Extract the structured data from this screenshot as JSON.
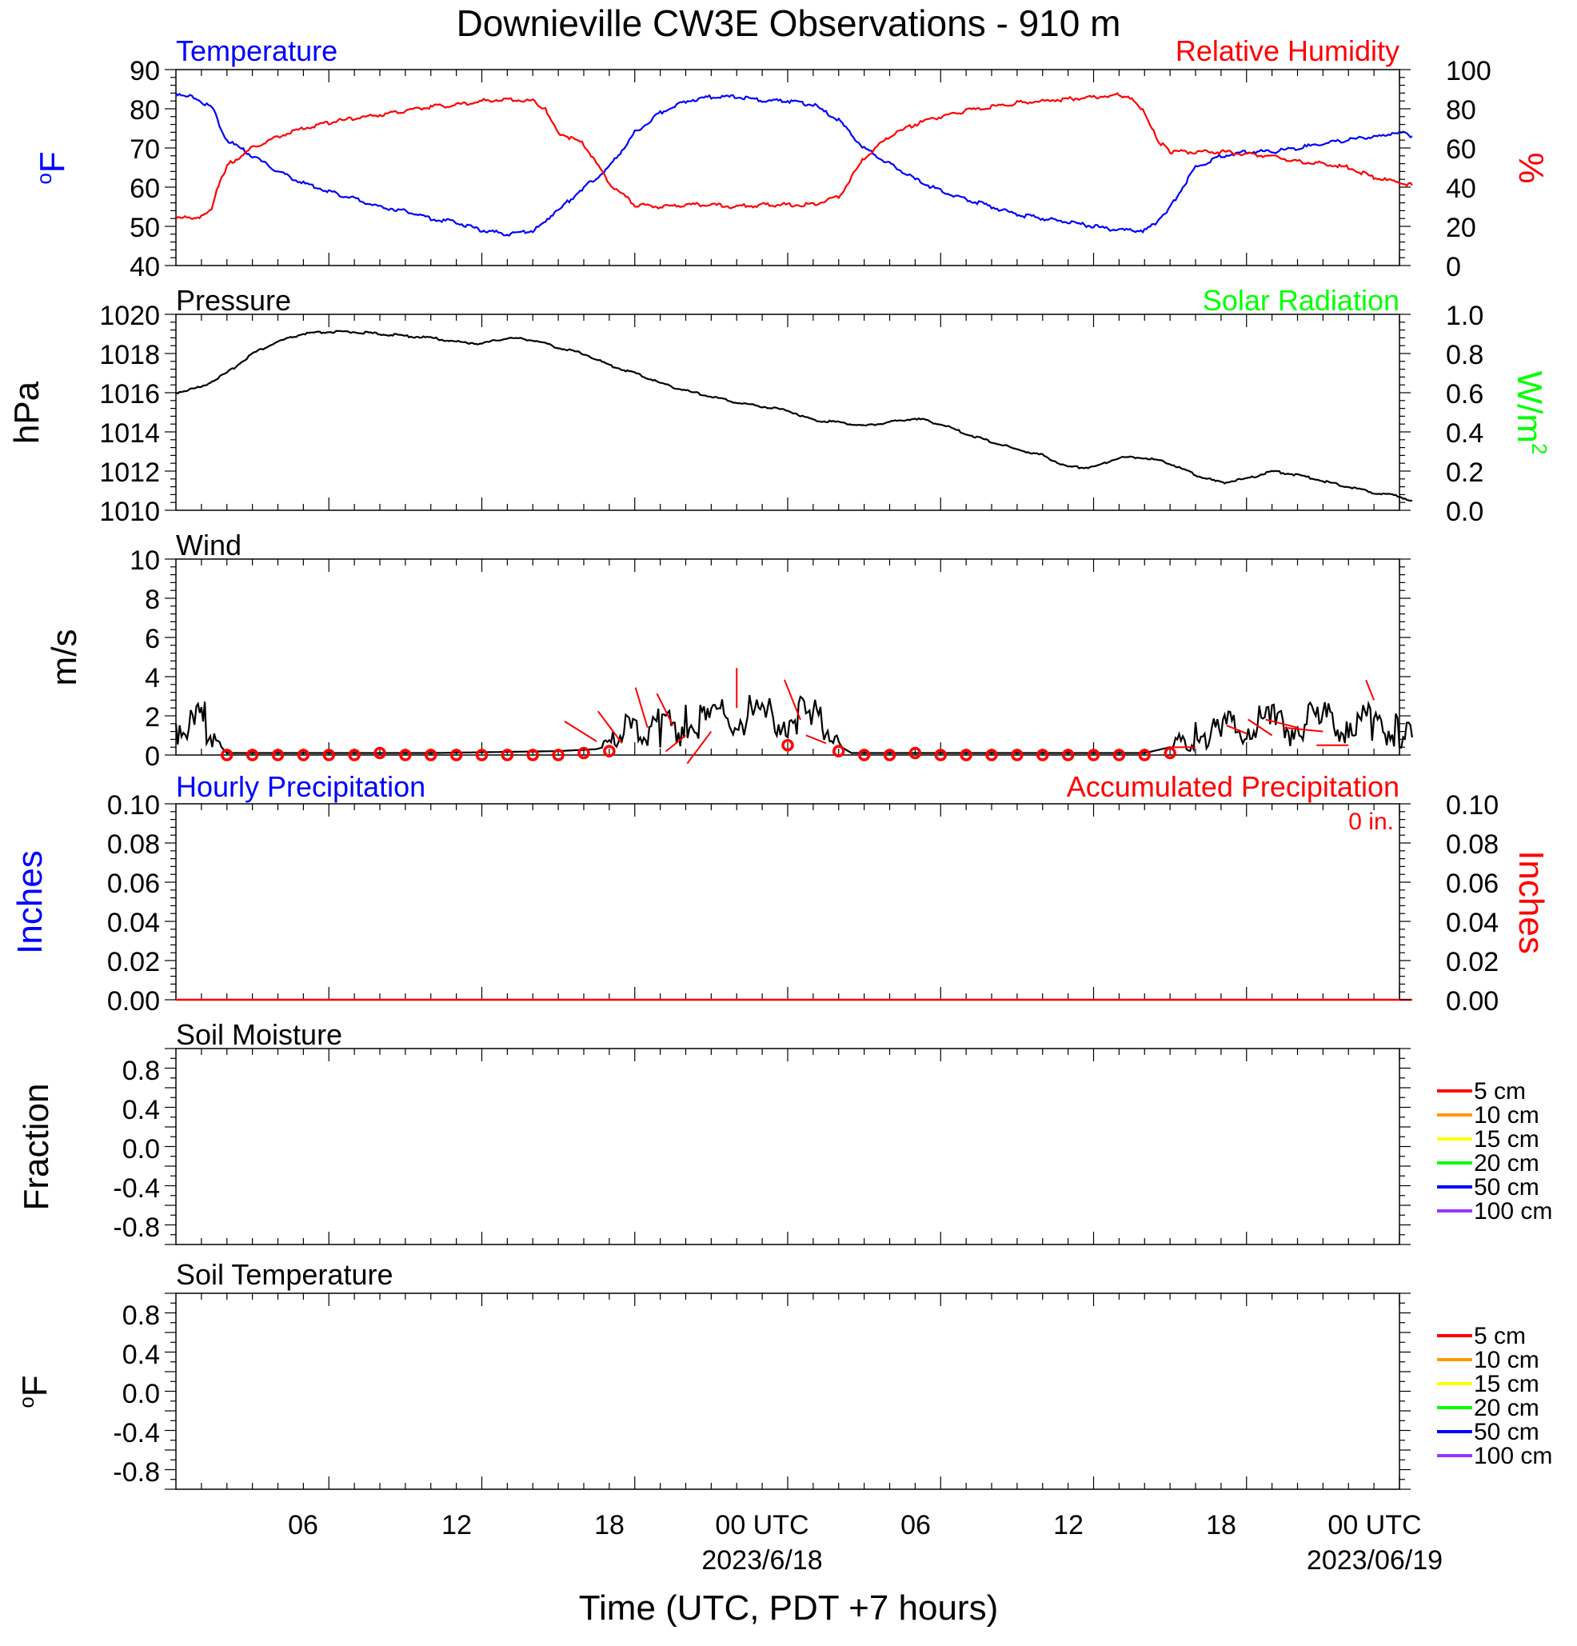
{
  "title": "Downieville CW3E Observations - 910 m",
  "xlabel": "Time (UTC, PDT +7 hours)",
  "x_ticks": [
    {
      "h": 6,
      "label": "06"
    },
    {
      "h": 12,
      "label": "12"
    },
    {
      "h": 18,
      "label": "18"
    },
    {
      "h": 24,
      "label": "00 UTC",
      "date": "2023/6/18"
    },
    {
      "h": 30,
      "label": "06"
    },
    {
      "h": 36,
      "label": "12"
    },
    {
      "h": 42,
      "label": "18"
    },
    {
      "h": 48,
      "label": "00 UTC",
      "date": "2023/06/19"
    }
  ],
  "colors": {
    "blue": "#0000ff",
    "red": "#ff0000",
    "green": "#00ff00",
    "black": "#000000"
  },
  "legend_depths": [
    {
      "label": "5 cm",
      "color": "#ff0000"
    },
    {
      "label": "10 cm",
      "color": "#ff9900"
    },
    {
      "label": "15 cm",
      "color": "#ffff00"
    },
    {
      "label": "20 cm",
      "color": "#00ff00"
    },
    {
      "label": "50 cm",
      "color": "#0000ff"
    },
    {
      "label": "100 cm",
      "color": "#9933ff"
    }
  ],
  "chart_data": [
    {
      "type": "line",
      "left_title": "Temperature",
      "right_title": "Relative Humidity",
      "left_unit": "oF",
      "right_unit": "%",
      "ylim_left": [
        40,
        90
      ],
      "ylim_right": [
        0,
        100
      ],
      "left_ticks": [
        "40",
        "50",
        "60",
        "70",
        "80",
        "90"
      ],
      "right_ticks": [
        "0",
        "20",
        "40",
        "60",
        "80",
        "100"
      ],
      "series": [
        {
          "color": "#0000ff",
          "axis": "left",
          "points": [
            [
              0,
              84
            ],
            [
              0.7,
              83
            ],
            [
              1.5,
              80
            ],
            [
              1.7,
              76
            ],
            [
              2,
              72
            ],
            [
              3,
              68
            ],
            [
              4,
              64
            ],
            [
              5,
              61
            ],
            [
              6,
              59
            ],
            [
              7,
              57
            ],
            [
              8,
              55
            ],
            [
              9,
              54
            ],
            [
              10,
              52
            ],
            [
              11,
              51
            ],
            [
              12,
              49
            ],
            [
              13,
              48
            ],
            [
              14,
              49
            ],
            [
              14.5,
              51
            ],
            [
              15,
              54
            ],
            [
              16,
              60
            ],
            [
              17,
              65
            ],
            [
              18,
              74
            ],
            [
              19,
              79
            ],
            [
              20,
              82
            ],
            [
              21,
              83
            ],
            [
              22,
              83
            ],
            [
              23,
              82
            ],
            [
              24,
              82
            ],
            [
              25,
              81
            ],
            [
              26,
              77
            ],
            [
              27,
              70
            ],
            [
              28,
              66
            ],
            [
              29,
              62
            ],
            [
              30,
              59
            ],
            [
              31,
              57
            ],
            [
              32,
              55
            ],
            [
              33,
              53
            ],
            [
              34,
              52
            ],
            [
              35,
              51
            ],
            [
              36,
              50
            ],
            [
              37,
              49
            ],
            [
              38,
              49
            ],
            [
              38.5,
              51
            ],
            [
              39,
              55
            ],
            [
              40,
              65
            ],
            [
              41,
              68
            ],
            [
              42,
              69
            ],
            [
              43,
              69
            ],
            [
              44,
              70
            ],
            [
              45,
              71
            ],
            [
              46,
              72
            ],
            [
              47,
              73
            ],
            [
              47.5,
              73
            ],
            [
              48,
              74
            ],
            [
              48.5,
              73
            ]
          ]
        },
        {
          "color": "#ff0000",
          "axis": "right",
          "points": [
            [
              0,
              24
            ],
            [
              1,
              25
            ],
            [
              1.4,
              28
            ],
            [
              1.6,
              38
            ],
            [
              2,
              51
            ],
            [
              3,
              60
            ],
            [
              4,
              66
            ],
            [
              5,
              70
            ],
            [
              6,
              73
            ],
            [
              7,
              75
            ],
            [
              8,
              77
            ],
            [
              9,
              79
            ],
            [
              10,
              81
            ],
            [
              11,
              82
            ],
            [
              12,
              84
            ],
            [
              13,
              85
            ],
            [
              14,
              84
            ],
            [
              14.5,
              80
            ],
            [
              15,
              68
            ],
            [
              16,
              62
            ],
            [
              17,
              42
            ],
            [
              18,
              31
            ],
            [
              19,
              30
            ],
            [
              20,
              31
            ],
            [
              21,
              31
            ],
            [
              22,
              30
            ],
            [
              23,
              31
            ],
            [
              24,
              31
            ],
            [
              25,
              31
            ],
            [
              26,
              35
            ],
            [
              27,
              55
            ],
            [
              28,
              66
            ],
            [
              29,
              72
            ],
            [
              30,
              76
            ],
            [
              31,
              79
            ],
            [
              32,
              81
            ],
            [
              33,
              83
            ],
            [
              34,
              84
            ],
            [
              35,
              85
            ],
            [
              36,
              86
            ],
            [
              37,
              87
            ],
            [
              37.5,
              86
            ],
            [
              38,
              78
            ],
            [
              38.5,
              64
            ],
            [
              39,
              58
            ],
            [
              40,
              58
            ],
            [
              41,
              58
            ],
            [
              42,
              57
            ],
            [
              43,
              56
            ],
            [
              44,
              53
            ],
            [
              45,
              52
            ],
            [
              46,
              50
            ],
            [
              47,
              45
            ],
            [
              48,
              42
            ],
            [
              48.5,
              41
            ]
          ]
        }
      ]
    },
    {
      "type": "line",
      "left_title": "Pressure",
      "right_title": "Solar Radiation",
      "left_unit": "hPa",
      "right_unit": "W/m2",
      "ylim_left": [
        1010,
        1020
      ],
      "ylim_right": [
        0,
        1
      ],
      "left_ticks": [
        "1010",
        "1012",
        "1014",
        "1016",
        "1018",
        "1020"
      ],
      "right_ticks": [
        "0.0",
        "0.2",
        "0.4",
        "0.6",
        "0.8",
        "1.0"
      ],
      "series": [
        {
          "color": "#000000",
          "axis": "left",
          "points": [
            [
              0,
              1016
            ],
            [
              1,
              1016.3
            ],
            [
              2,
              1017
            ],
            [
              3,
              1018
            ],
            [
              4,
              1018.6
            ],
            [
              5,
              1019
            ],
            [
              6,
              1019.1
            ],
            [
              7,
              1019.1
            ],
            [
              8,
              1019
            ],
            [
              9,
              1018.9
            ],
            [
              10,
              1018.8
            ],
            [
              11,
              1018.6
            ],
            [
              12,
              1018.5
            ],
            [
              13,
              1018.8
            ],
            [
              14,
              1018.7
            ],
            [
              15,
              1018.3
            ],
            [
              16,
              1018
            ],
            [
              17,
              1017.4
            ],
            [
              18,
              1017
            ],
            [
              19,
              1016.5
            ],
            [
              20,
              1016.1
            ],
            [
              21,
              1015.8
            ],
            [
              22,
              1015.5
            ],
            [
              23,
              1015.3
            ],
            [
              24,
              1015.1
            ],
            [
              25,
              1014.6
            ],
            [
              26,
              1014.5
            ],
            [
              27,
              1014.3
            ],
            [
              28,
              1014.5
            ],
            [
              29,
              1014.7
            ],
            [
              30,
              1014.4
            ],
            [
              31,
              1013.9
            ],
            [
              32,
              1013.5
            ],
            [
              33,
              1013.1
            ],
            [
              34,
              1012.8
            ],
            [
              35,
              1012.2
            ],
            [
              36,
              1012.2
            ],
            [
              37,
              1012.7
            ],
            [
              38,
              1012.7
            ],
            [
              39,
              1012.4
            ],
            [
              40,
              1011.8
            ],
            [
              41,
              1011.4
            ],
            [
              42,
              1011.6
            ],
            [
              43,
              1012
            ],
            [
              44,
              1011.8
            ],
            [
              45,
              1011.5
            ],
            [
              46,
              1011.2
            ],
            [
              47,
              1010.9
            ],
            [
              48,
              1010.7
            ],
            [
              48.5,
              1010.5
            ]
          ]
        }
      ]
    },
    {
      "type": "line",
      "left_title": "Wind",
      "left_unit": "m/s",
      "ylim_left": [
        0,
        10
      ],
      "left_ticks": [
        "0",
        "2",
        "4",
        "6",
        "8",
        "10"
      ],
      "series": [
        {
          "color": "#000000",
          "axis": "left",
          "points": [
            [
              0,
              1.6
            ],
            [
              0.8,
              1.5
            ],
            [
              1.2,
              1.7
            ],
            [
              1.5,
              0.8
            ],
            [
              2,
              0.1
            ],
            [
              5,
              0.1
            ],
            [
              10,
              0.1
            ],
            [
              15,
              0.2
            ],
            [
              16.5,
              0.3
            ],
            [
              17,
              0.5
            ],
            [
              17.5,
              1.2
            ],
            [
              18,
              1.4
            ],
            [
              19,
              1.5
            ],
            [
              20,
              1.6
            ],
            [
              21,
              1.8
            ],
            [
              22,
              2.1
            ],
            [
              23,
              1.9
            ],
            [
              24,
              1.8
            ],
            [
              25,
              1.9
            ],
            [
              25.5,
              1.6
            ],
            [
              26,
              0.5
            ],
            [
              26.5,
              0.1
            ],
            [
              30,
              0.1
            ],
            [
              35,
              0.1
            ],
            [
              38,
              0.1
            ],
            [
              39,
              0.4
            ],
            [
              40,
              1.0
            ],
            [
              41,
              1.3
            ],
            [
              42,
              1.4
            ],
            [
              43,
              1.5
            ],
            [
              44,
              1.6
            ],
            [
              45,
              1.6
            ],
            [
              46,
              1.7
            ],
            [
              47,
              1.5
            ],
            [
              48,
              1.2
            ],
            [
              48.5,
              0.9
            ]
          ]
        }
      ],
      "hourly_markers_h": [
        2,
        3,
        4,
        5,
        6,
        7,
        8,
        9,
        10,
        11,
        12,
        13,
        14,
        15,
        16,
        17,
        24,
        26,
        27,
        28,
        29,
        30,
        31,
        32,
        33,
        34,
        35,
        36,
        37,
        38,
        39
      ],
      "marker_values": [
        0,
        0,
        0,
        0,
        0,
        0,
        0.1,
        0,
        0,
        0,
        0,
        0,
        0,
        0,
        0.1,
        0.2,
        0.5,
        0.2,
        0,
        0,
        0.1,
        0,
        0,
        0,
        0,
        0,
        0,
        0,
        0,
        0,
        0.1
      ]
    },
    {
      "type": "line",
      "left_title": "Hourly Precipitation",
      "right_title": "Accumulated Precipitation",
      "annotation": "0 in.",
      "left_unit": "Inches",
      "right_unit": "Inches",
      "ylim_left": [
        0,
        0.1
      ],
      "ylim_right": [
        0,
        0.1
      ],
      "left_ticks": [
        "0.00",
        "0.02",
        "0.04",
        "0.06",
        "0.08",
        "0.10"
      ],
      "right_ticks": [
        "0.00",
        "0.02",
        "0.04",
        "0.06",
        "0.08",
        "0.10"
      ],
      "series": [
        {
          "color": "#ff0000",
          "axis": "left",
          "points": [
            [
              0,
              0
            ],
            [
              48.5,
              0
            ]
          ]
        }
      ]
    },
    {
      "type": "line",
      "left_title": "Soil Moisture",
      "left_unit": "Fraction",
      "ylim_left": [
        -1,
        1
      ],
      "left_ticks": [
        "-0.8",
        "-0.4",
        "0.0",
        "0.4",
        "0.8"
      ],
      "series": []
    },
    {
      "type": "line",
      "left_title": "Soil Temperature",
      "left_unit": "oF",
      "ylim_left": [
        -1,
        1
      ],
      "left_ticks": [
        "-0.8",
        "-0.4",
        "0.0",
        "0.4",
        "0.8"
      ],
      "series": []
    }
  ]
}
